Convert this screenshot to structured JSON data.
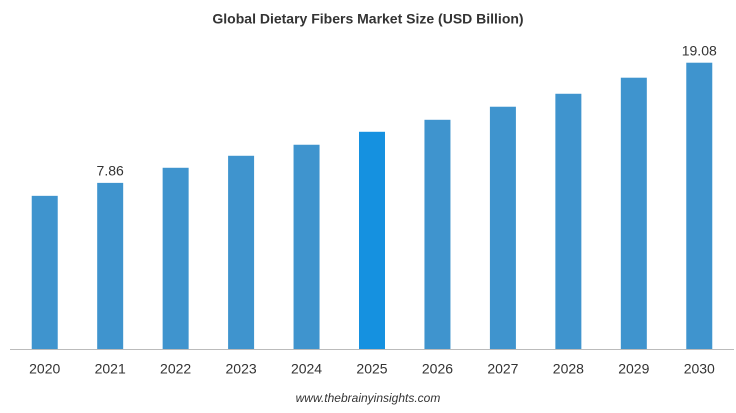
{
  "chart_data": {
    "type": "bar",
    "title": "Global Dietary Fibers Market Size (USD Billion)",
    "categories": [
      "2020",
      "2021",
      "2022",
      "2023",
      "2024",
      "2025",
      "2026",
      "2027",
      "2028",
      "2029",
      "2030"
    ],
    "values": [
      6.65,
      7.86,
      9.27,
      10.39,
      11.42,
      12.63,
      13.75,
      14.97,
      16.18,
      17.68,
      19.08
    ],
    "value_labels": [
      null,
      "7.86",
      null,
      null,
      null,
      null,
      null,
      null,
      null,
      null,
      "19.08"
    ],
    "colors": [
      "#3f94ce",
      "#3f94ce",
      "#3f94ce",
      "#3f94ce",
      "#3f94ce",
      "#1591e0",
      "#3f94ce",
      "#3f94ce",
      "#3f94ce",
      "#3f94ce",
      "#3f94ce"
    ],
    "ylim": [
      -7.65,
      21.2
    ],
    "source": "www.thebrainyinsights.com"
  }
}
